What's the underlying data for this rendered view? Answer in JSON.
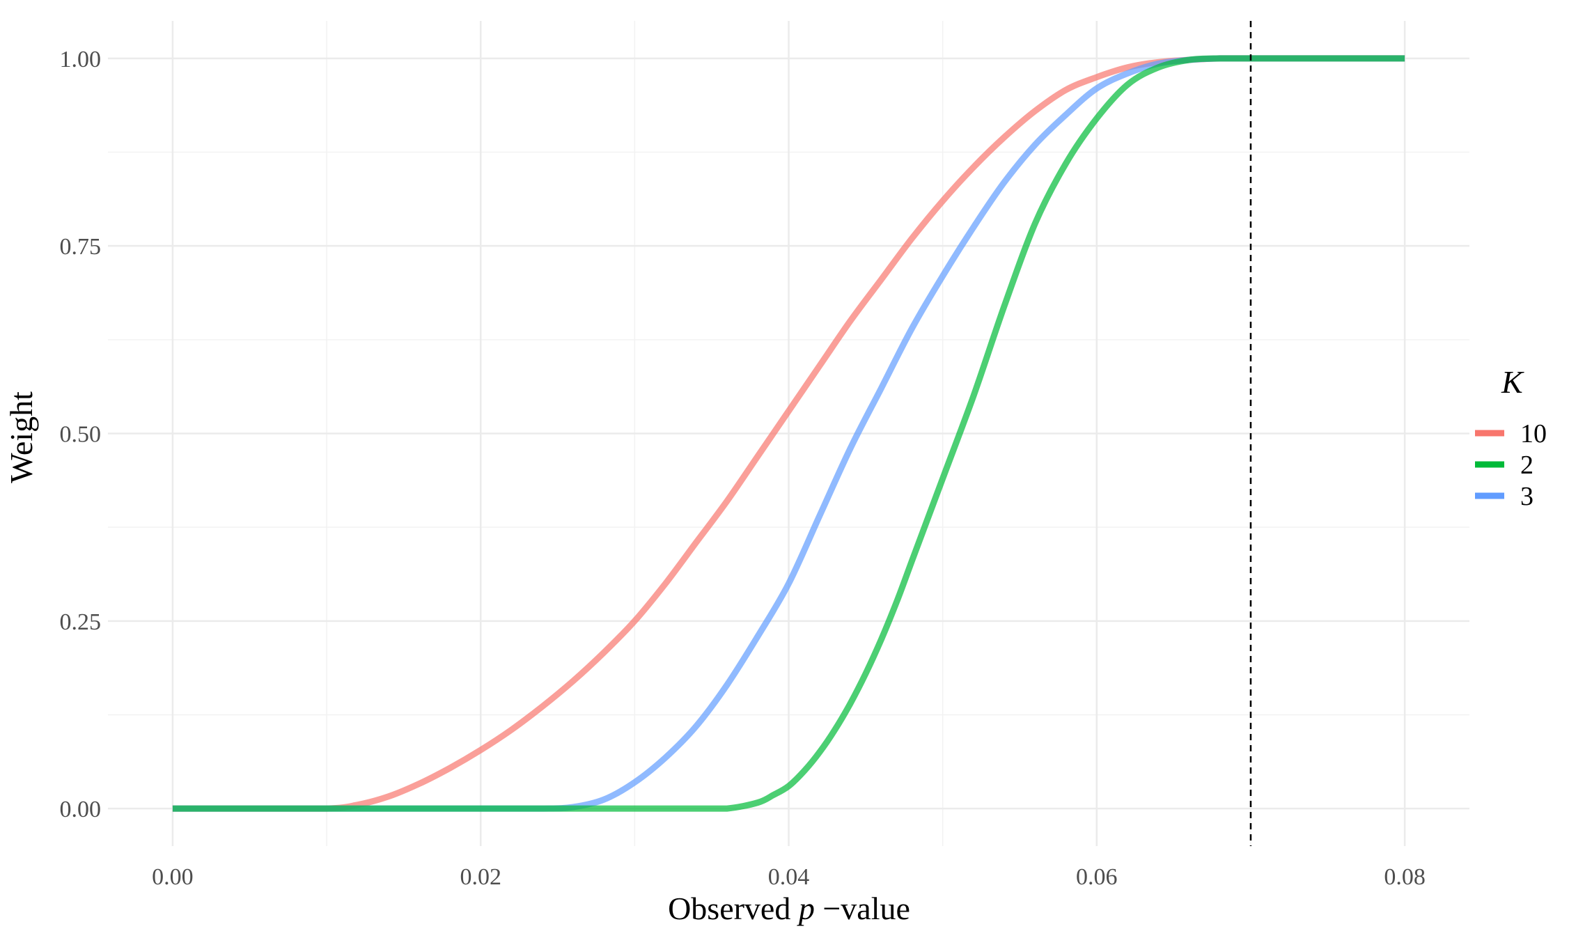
{
  "chart_data": {
    "type": "line",
    "xlabel": {
      "prefix": "Observed ",
      "italic": "p",
      "suffix": " −value"
    },
    "ylabel": "Weight",
    "xlim": [
      -0.0042,
      0.0842
    ],
    "ylim": [
      -0.05,
      1.05
    ],
    "x_ticks": [
      {
        "value": 0.0,
        "label": "0.00"
      },
      {
        "value": 0.02,
        "label": "0.02"
      },
      {
        "value": 0.04,
        "label": "0.04"
      },
      {
        "value": 0.06,
        "label": "0.06"
      },
      {
        "value": 0.08,
        "label": "0.08"
      }
    ],
    "x_minor_ticks": [
      0.01,
      0.03,
      0.05,
      0.07
    ],
    "y_ticks": [
      {
        "value": 0.0,
        "label": "0.00"
      },
      {
        "value": 0.25,
        "label": "0.25"
      },
      {
        "value": 0.5,
        "label": "0.50"
      },
      {
        "value": 0.75,
        "label": "0.75"
      },
      {
        "value": 1.0,
        "label": "1.00"
      }
    ],
    "y_minor_ticks": [
      0.125,
      0.375,
      0.625,
      0.875
    ],
    "grid": true,
    "vline": {
      "x": 0.07,
      "style": "dashed",
      "color": "#000000"
    },
    "legend": {
      "title": "K",
      "placement": "right",
      "entries": [
        {
          "label": "10",
          "color": "#F8766D"
        },
        {
          "label": "2",
          "color": "#00BA38"
        },
        {
          "label": "3",
          "color": "#619CFF"
        }
      ]
    },
    "series": [
      {
        "name": "10",
        "color": "#F8766D",
        "x": [
          0.0,
          0.005,
          0.01,
          0.012,
          0.014,
          0.016,
          0.018,
          0.02,
          0.022,
          0.024,
          0.026,
          0.028,
          0.03,
          0.032,
          0.034,
          0.036,
          0.038,
          0.04,
          0.042,
          0.044,
          0.046,
          0.048,
          0.05,
          0.052,
          0.054,
          0.056,
          0.058,
          0.06,
          0.062,
          0.064,
          0.066,
          0.068,
          0.07,
          0.075,
          0.08
        ],
        "y": [
          0.0,
          0.0,
          0.0,
          0.005,
          0.016,
          0.033,
          0.054,
          0.078,
          0.105,
          0.136,
          0.17,
          0.208,
          0.25,
          0.3,
          0.355,
          0.41,
          0.47,
          0.53,
          0.59,
          0.65,
          0.705,
          0.76,
          0.81,
          0.855,
          0.895,
          0.93,
          0.958,
          0.975,
          0.988,
          0.995,
          0.998,
          1.0,
          1.0,
          1.0,
          1.0
        ]
      },
      {
        "name": "3",
        "color": "#619CFF",
        "x": [
          0.0,
          0.01,
          0.02,
          0.024,
          0.026,
          0.028,
          0.03,
          0.032,
          0.034,
          0.036,
          0.038,
          0.04,
          0.042,
          0.044,
          0.046,
          0.048,
          0.05,
          0.052,
          0.054,
          0.056,
          0.058,
          0.06,
          0.062,
          0.064,
          0.066,
          0.068,
          0.07,
          0.075,
          0.08
        ],
        "y": [
          0.0,
          0.0,
          0.0,
          0.0,
          0.002,
          0.012,
          0.035,
          0.068,
          0.11,
          0.165,
          0.23,
          0.3,
          0.39,
          0.48,
          0.56,
          0.64,
          0.71,
          0.775,
          0.835,
          0.885,
          0.925,
          0.96,
          0.98,
          0.993,
          0.998,
          1.0,
          1.0,
          1.0,
          1.0
        ]
      },
      {
        "name": "2",
        "color": "#00BA38",
        "x": [
          0.0,
          0.01,
          0.02,
          0.03,
          0.034,
          0.036,
          0.038,
          0.039,
          0.04,
          0.041,
          0.042,
          0.043,
          0.044,
          0.045,
          0.046,
          0.047,
          0.048,
          0.05,
          0.052,
          0.054,
          0.056,
          0.058,
          0.06,
          0.062,
          0.064,
          0.066,
          0.068,
          0.07,
          0.075,
          0.08
        ],
        "y": [
          0.0,
          0.0,
          0.0,
          0.0,
          0.0,
          0.0,
          0.008,
          0.018,
          0.03,
          0.05,
          0.075,
          0.105,
          0.14,
          0.18,
          0.225,
          0.275,
          0.33,
          0.44,
          0.55,
          0.67,
          0.78,
          0.86,
          0.92,
          0.965,
          0.988,
          0.998,
          1.0,
          1.0,
          1.0,
          1.0
        ]
      }
    ]
  }
}
